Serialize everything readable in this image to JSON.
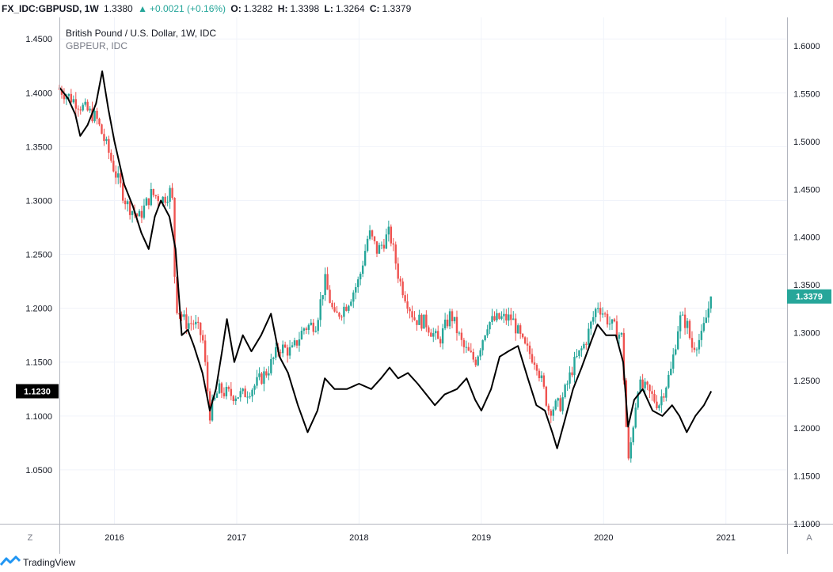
{
  "header": {
    "symbol": "FX_IDC:GBPUSD, 1W",
    "last": "1.3380",
    "change_arrow": "▲",
    "change": "+0.0021 (+0.16%)",
    "o_label": "O:",
    "o": "1.3282",
    "h_label": "H:",
    "h": "1.3398",
    "l_label": "L:",
    "l": "1.3264",
    "c_label": "C:",
    "c": "1.3379",
    "up_color": "#26a69a",
    "down_color": "#ef5350"
  },
  "legend": {
    "main": "British Pound / U.S. Dollar, 1W, IDC",
    "overlay": "GBPEUR, IDC"
  },
  "axis": {
    "corner_left": "Z",
    "corner_right": "A",
    "x_ticks": [
      "2016",
      "2017",
      "2018",
      "2019",
      "2020",
      "2021"
    ],
    "left_ticks": [
      "1.4500",
      "1.4000",
      "1.3500",
      "1.3000",
      "1.2500",
      "1.2000",
      "1.1500",
      "1.1000",
      "1.0500"
    ],
    "right_ticks": [
      "1.6000",
      "1.5500",
      "1.5000",
      "1.4500",
      "1.4000",
      "1.3500",
      "1.3000",
      "1.2500",
      "1.2000",
      "1.1500",
      "1.1000"
    ],
    "left_badge": "1.1230",
    "right_badge": "1.3379"
  },
  "footer": {
    "brand": "TradingView",
    "logo_icon": "tradingview-logo-icon"
  },
  "chart_data": {
    "type": "line",
    "x_range": [
      "2015-08",
      "2020-11"
    ],
    "left_axis_range": [
      1.0,
      1.47
    ],
    "right_axis_range": [
      1.1,
      1.63
    ],
    "series": [
      {
        "name": "British Pound / U.S. Dollar, 1W, IDC",
        "style": "candlestick",
        "axis": "right",
        "anchors": [
          [
            2015.55,
            1.555
          ],
          [
            2015.65,
            1.545
          ],
          [
            2015.75,
            1.535
          ],
          [
            2015.85,
            1.525
          ],
          [
            2015.95,
            1.49
          ],
          [
            2016.0,
            1.47
          ],
          [
            2016.1,
            1.435
          ],
          [
            2016.2,
            1.42
          ],
          [
            2016.3,
            1.445
          ],
          [
            2016.4,
            1.44
          ],
          [
            2016.47,
            1.45
          ],
          [
            2016.5,
            1.33
          ],
          [
            2016.58,
            1.31
          ],
          [
            2016.65,
            1.31
          ],
          [
            2016.72,
            1.295
          ],
          [
            2016.78,
            1.215
          ],
          [
            2016.85,
            1.24
          ],
          [
            2016.95,
            1.235
          ],
          [
            2017.05,
            1.235
          ],
          [
            2017.15,
            1.245
          ],
          [
            2017.25,
            1.26
          ],
          [
            2017.35,
            1.285
          ],
          [
            2017.45,
            1.28
          ],
          [
            2017.55,
            1.305
          ],
          [
            2017.65,
            1.31
          ],
          [
            2017.72,
            1.355
          ],
          [
            2017.8,
            1.315
          ],
          [
            2017.9,
            1.33
          ],
          [
            2018.0,
            1.355
          ],
          [
            2018.08,
            1.405
          ],
          [
            2018.15,
            1.385
          ],
          [
            2018.25,
            1.405
          ],
          [
            2018.33,
            1.355
          ],
          [
            2018.45,
            1.315
          ],
          [
            2018.55,
            1.31
          ],
          [
            2018.65,
            1.29
          ],
          [
            2018.75,
            1.32
          ],
          [
            2018.85,
            1.285
          ],
          [
            2018.95,
            1.27
          ],
          [
            2019.05,
            1.31
          ],
          [
            2019.15,
            1.315
          ],
          [
            2019.25,
            1.315
          ],
          [
            2019.35,
            1.285
          ],
          [
            2019.45,
            1.27
          ],
          [
            2019.55,
            1.22
          ],
          [
            2019.65,
            1.225
          ],
          [
            2019.75,
            1.265
          ],
          [
            2019.85,
            1.29
          ],
          [
            2019.95,
            1.33
          ],
          [
            2020.05,
            1.31
          ],
          [
            2020.15,
            1.295
          ],
          [
            2020.2,
            1.16
          ],
          [
            2020.28,
            1.245
          ],
          [
            2020.35,
            1.24
          ],
          [
            2020.45,
            1.225
          ],
          [
            2020.55,
            1.26
          ],
          [
            2020.62,
            1.315
          ],
          [
            2020.68,
            1.31
          ],
          [
            2020.72,
            1.285
          ],
          [
            2020.8,
            1.295
          ],
          [
            2020.88,
            1.3379
          ]
        ]
      },
      {
        "name": "GBPEUR, IDC",
        "style": "line",
        "color": "#000000",
        "axis": "left",
        "anchors": [
          [
            2015.55,
            1.405
          ],
          [
            2015.62,
            1.395
          ],
          [
            2015.68,
            1.38
          ],
          [
            2015.72,
            1.36
          ],
          [
            2015.78,
            1.37
          ],
          [
            2015.85,
            1.39
          ],
          [
            2015.9,
            1.42
          ],
          [
            2015.95,
            1.385
          ],
          [
            2016.0,
            1.355
          ],
          [
            2016.08,
            1.315
          ],
          [
            2016.15,
            1.295
          ],
          [
            2016.22,
            1.27
          ],
          [
            2016.28,
            1.255
          ],
          [
            2016.33,
            1.285
          ],
          [
            2016.38,
            1.3
          ],
          [
            2016.45,
            1.285
          ],
          [
            2016.5,
            1.255
          ],
          [
            2016.55,
            1.175
          ],
          [
            2016.6,
            1.18
          ],
          [
            2016.65,
            1.165
          ],
          [
            2016.72,
            1.14
          ],
          [
            2016.78,
            1.105
          ],
          [
            2016.83,
            1.125
          ],
          [
            2016.88,
            1.16
          ],
          [
            2016.92,
            1.19
          ],
          [
            2016.98,
            1.15
          ],
          [
            2017.05,
            1.175
          ],
          [
            2017.12,
            1.16
          ],
          [
            2017.2,
            1.175
          ],
          [
            2017.28,
            1.195
          ],
          [
            2017.35,
            1.155
          ],
          [
            2017.42,
            1.14
          ],
          [
            2017.5,
            1.11
          ],
          [
            2017.58,
            1.085
          ],
          [
            2017.66,
            1.105
          ],
          [
            2017.72,
            1.135
          ],
          [
            2017.8,
            1.125
          ],
          [
            2017.9,
            1.125
          ],
          [
            2018.0,
            1.13
          ],
          [
            2018.1,
            1.125
          ],
          [
            2018.18,
            1.135
          ],
          [
            2018.25,
            1.145
          ],
          [
            2018.32,
            1.135
          ],
          [
            2018.4,
            1.14
          ],
          [
            2018.48,
            1.13
          ],
          [
            2018.55,
            1.12
          ],
          [
            2018.62,
            1.11
          ],
          [
            2018.7,
            1.12
          ],
          [
            2018.8,
            1.125
          ],
          [
            2018.88,
            1.135
          ],
          [
            2018.95,
            1.115
          ],
          [
            2019.0,
            1.105
          ],
          [
            2019.08,
            1.125
          ],
          [
            2019.15,
            1.155
          ],
          [
            2019.22,
            1.16
          ],
          [
            2019.3,
            1.165
          ],
          [
            2019.38,
            1.135
          ],
          [
            2019.45,
            1.11
          ],
          [
            2019.52,
            1.105
          ],
          [
            2019.58,
            1.085
          ],
          [
            2019.62,
            1.07
          ],
          [
            2019.68,
            1.095
          ],
          [
            2019.75,
            1.125
          ],
          [
            2019.82,
            1.145
          ],
          [
            2019.9,
            1.17
          ],
          [
            2019.95,
            1.185
          ],
          [
            2020.02,
            1.175
          ],
          [
            2020.1,
            1.175
          ],
          [
            2020.16,
            1.15
          ],
          [
            2020.2,
            1.09
          ],
          [
            2020.25,
            1.115
          ],
          [
            2020.32,
            1.125
          ],
          [
            2020.4,
            1.105
          ],
          [
            2020.48,
            1.1
          ],
          [
            2020.56,
            1.11
          ],
          [
            2020.62,
            1.1
          ],
          [
            2020.68,
            1.085
          ],
          [
            2020.75,
            1.1
          ],
          [
            2020.82,
            1.11
          ],
          [
            2020.88,
            1.123
          ]
        ]
      }
    ]
  }
}
